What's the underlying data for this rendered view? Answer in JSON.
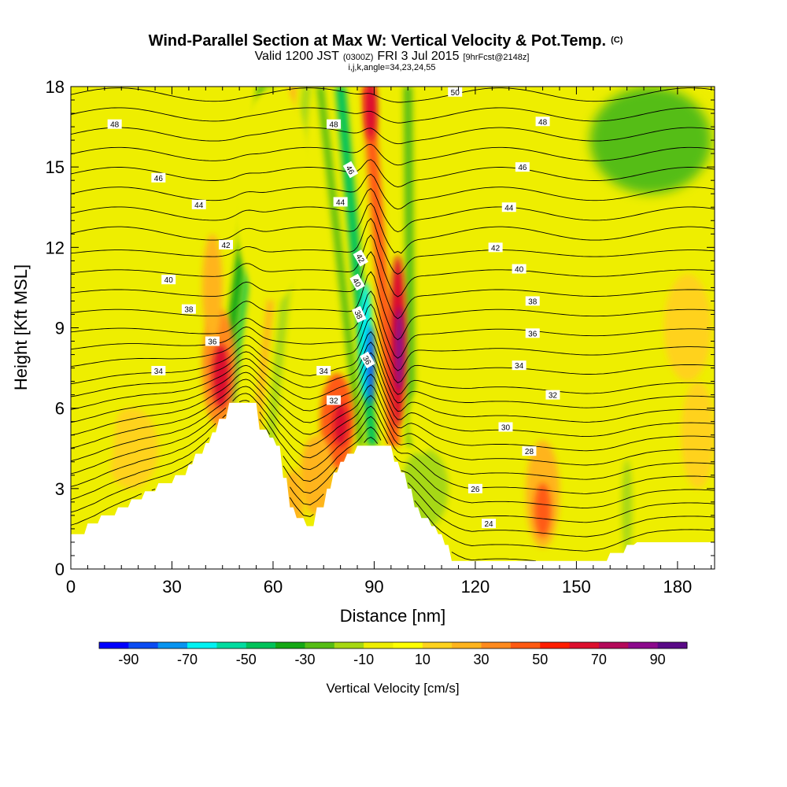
{
  "chart_data": {
    "type": "heatmap",
    "title": "Wind-Parallel Section at Max W: Vertical Velocity & Pot.Temp.",
    "title_note": "(C)",
    "subtitle": {
      "prefix": "Valid 1200 JST",
      "utc": "(0300Z)",
      "date": "FRI 3 Jul 2015",
      "forecast": "[9hrFcst@2148z]"
    },
    "indices_line": "i,j,k,angle=34,23,24,55",
    "xlabel": "Distance [nm]",
    "ylabel": "Height [Kft MSL]",
    "xlim": [
      0,
      191
    ],
    "ylim": [
      0,
      18
    ],
    "xticks": [
      {
        "value": 0,
        "label": "0"
      },
      {
        "value": 30,
        "label": "30"
      },
      {
        "value": 60,
        "label": "60"
      },
      {
        "value": 90,
        "label": "90"
      },
      {
        "value": 120,
        "label": "120"
      },
      {
        "value": 150,
        "label": "150"
      },
      {
        "value": 180,
        "label": "180"
      }
    ],
    "yticks": [
      {
        "value": 0,
        "label": "0"
      },
      {
        "value": 3,
        "label": "3"
      },
      {
        "value": 6,
        "label": "6"
      },
      {
        "value": 9,
        "label": "9"
      },
      {
        "value": 12,
        "label": "12"
      },
      {
        "value": 15,
        "label": "15"
      },
      {
        "value": 18,
        "label": "18"
      }
    ],
    "colorbar": {
      "label": "Vertical Velocity [cm/s]",
      "min": -100,
      "max": 100,
      "colors": [
        "#0000ff",
        "#0b4cf2",
        "#0894f0",
        "#00f2f2",
        "#00dca0",
        "#00c25a",
        "#14a814",
        "#55bd14",
        "#a6d812",
        "#eeee00",
        "#ffff00",
        "#ffd21e",
        "#ffb41e",
        "#ff8a1e",
        "#ff5a12",
        "#ff1e00",
        "#dc0f2d",
        "#b40a5a",
        "#8c0a8c",
        "#5a0a87"
      ],
      "tick_labels": [
        {
          "value": -90,
          "label": "-90"
        },
        {
          "value": -70,
          "label": "-70"
        },
        {
          "value": -50,
          "label": "-50"
        },
        {
          "value": -30,
          "label": "-30"
        },
        {
          "value": -10,
          "label": "-10"
        },
        {
          "value": 10,
          "label": "10"
        },
        {
          "value": 30,
          "label": "30"
        },
        {
          "value": 50,
          "label": "50"
        },
        {
          "value": 70,
          "label": "70"
        },
        {
          "value": 90,
          "label": "90"
        }
      ]
    },
    "terrain": [
      [
        0,
        1.3
      ],
      [
        4,
        1.3
      ],
      [
        5,
        1.7
      ],
      [
        8,
        1.7
      ],
      [
        9,
        2.0
      ],
      [
        13,
        2.0
      ],
      [
        14,
        2.3
      ],
      [
        17,
        2.3
      ],
      [
        18,
        2.6
      ],
      [
        21,
        2.6
      ],
      [
        22,
        2.9
      ],
      [
        25,
        2.9
      ],
      [
        26,
        3.2
      ],
      [
        30,
        3.2
      ],
      [
        31,
        3.5
      ],
      [
        34,
        3.5
      ],
      [
        35,
        3.9
      ],
      [
        36,
        3.9
      ],
      [
        37,
        4.3
      ],
      [
        39,
        4.3
      ],
      [
        40,
        4.7
      ],
      [
        41,
        4.7
      ],
      [
        42,
        5.1
      ],
      [
        43,
        5.1
      ],
      [
        44,
        5.6
      ],
      [
        46,
        5.6
      ],
      [
        47,
        6.2
      ],
      [
        55,
        6.2
      ],
      [
        56,
        5.2
      ],
      [
        58,
        5.2
      ],
      [
        59,
        4.9
      ],
      [
        60,
        4.9
      ],
      [
        61,
        4.6
      ],
      [
        62,
        4.6
      ],
      [
        63,
        3.4
      ],
      [
        64,
        3.4
      ],
      [
        65,
        2.3
      ],
      [
        66,
        2.3
      ],
      [
        67,
        1.9
      ],
      [
        69,
        1.9
      ],
      [
        70,
        1.6
      ],
      [
        72,
        1.6
      ],
      [
        73,
        2.3
      ],
      [
        75,
        2.3
      ],
      [
        76,
        3.0
      ],
      [
        77,
        3.0
      ],
      [
        78,
        3.6
      ],
      [
        79,
        3.6
      ],
      [
        80,
        4.0
      ],
      [
        81,
        4.0
      ],
      [
        82,
        4.3
      ],
      [
        84,
        4.3
      ],
      [
        85,
        4.6
      ],
      [
        95,
        4.6
      ],
      [
        96,
        4.0
      ],
      [
        97,
        4.0
      ],
      [
        98,
        3.6
      ],
      [
        99,
        3.6
      ],
      [
        100,
        3.0
      ],
      [
        101,
        3.0
      ],
      [
        102,
        2.3
      ],
      [
        103,
        2.3
      ],
      [
        104,
        1.9
      ],
      [
        106,
        1.9
      ],
      [
        107,
        1.6
      ],
      [
        108,
        1.6
      ],
      [
        109,
        1.3
      ],
      [
        110,
        1.3
      ],
      [
        111,
        0.9
      ],
      [
        112,
        0.9
      ],
      [
        113,
        0.3
      ],
      [
        159,
        0.3
      ],
      [
        160,
        0.6
      ],
      [
        164,
        0.6
      ],
      [
        165,
        0.9
      ],
      [
        167,
        0.9
      ],
      [
        168,
        1.0
      ],
      [
        191,
        1.0
      ]
    ],
    "velocity_features": [
      {
        "type": "band",
        "x0": 45,
        "y0": 6.2,
        "x1": 57,
        "y1": 18,
        "width": 3.0,
        "value": -32
      },
      {
        "type": "band",
        "x0": 47.5,
        "y0": 6.2,
        "x1": 59.5,
        "y1": 18,
        "width": 1.5,
        "value": -48
      },
      {
        "type": "band",
        "x0": 55,
        "y0": 5.0,
        "x1": 66,
        "y1": 18,
        "width": 2.0,
        "value": 20
      },
      {
        "type": "band",
        "x0": 59,
        "y0": 4.5,
        "x1": 70,
        "y1": 18,
        "width": 2.5,
        "value": -18
      },
      {
        "type": "band",
        "x0": 86,
        "y0": 4.6,
        "x1": 74,
        "y1": 18,
        "width": 2.0,
        "value": -22
      },
      {
        "type": "band",
        "x0": 89.5,
        "y0": 4.6,
        "x1": 80,
        "y1": 18,
        "width": 3.0,
        "value": -50
      },
      {
        "type": "band",
        "x0": 96,
        "y0": 4.6,
        "x1": 88,
        "y1": 18,
        "width": 3.5,
        "value": 45
      },
      {
        "type": "band",
        "x0": 101,
        "y0": 4.6,
        "x1": 100,
        "y1": 18,
        "width": 2.5,
        "value": -28
      },
      {
        "type": "blob",
        "x": 87.5,
        "y": 8.5,
        "rx": 1.8,
        "ry": 2.2,
        "value": -70
      },
      {
        "type": "blob",
        "x": 89,
        "y": 7.6,
        "rx": 1.0,
        "ry": 1.5,
        "value": -85
      },
      {
        "type": "blob",
        "x": 97,
        "y": 8.5,
        "rx": 2.4,
        "ry": 3.2,
        "value": 60
      },
      {
        "type": "blob",
        "x": 97.5,
        "y": 8.2,
        "rx": 1.2,
        "ry": 1.6,
        "value": 88
      },
      {
        "type": "blob",
        "x": 89,
        "y": 17.2,
        "rx": 1.8,
        "ry": 1.2,
        "value": 62
      },
      {
        "type": "blob",
        "x": 44,
        "y": 7.5,
        "rx": 5.0,
        "ry": 2.2,
        "value": 38
      },
      {
        "type": "blob",
        "x": 44.5,
        "y": 7.2,
        "rx": 2.5,
        "ry": 1.2,
        "value": 62
      },
      {
        "type": "blob",
        "x": 42,
        "y": 10.5,
        "rx": 3.0,
        "ry": 2.0,
        "value": 22
      },
      {
        "type": "blob",
        "x": 79,
        "y": 5.5,
        "rx": 5.0,
        "ry": 1.8,
        "value": 40
      },
      {
        "type": "blob",
        "x": 80,
        "y": 5.4,
        "rx": 2.2,
        "ry": 0.8,
        "value": 62
      },
      {
        "type": "blob",
        "x": 73,
        "y": 3.5,
        "rx": 5.0,
        "ry": 1.5,
        "value": 25
      },
      {
        "type": "blob",
        "x": 66,
        "y": 2.5,
        "rx": 3.0,
        "ry": 1.2,
        "value": 20
      },
      {
        "type": "blob",
        "x": 140,
        "y": 2.8,
        "rx": 5.0,
        "ry": 2.0,
        "value": 28
      },
      {
        "type": "blob",
        "x": 140,
        "y": 2.2,
        "rx": 2.5,
        "ry": 1.0,
        "value": 40
      },
      {
        "type": "blob",
        "x": 18,
        "y": 4.5,
        "rx": 8.0,
        "ry": 1.5,
        "value": 18
      },
      {
        "type": "blob",
        "x": 186,
        "y": 5.0,
        "rx": 5.0,
        "ry": 2.0,
        "value": 18
      },
      {
        "type": "blob",
        "x": 183,
        "y": 9.0,
        "rx": 7.0,
        "ry": 2.0,
        "value": 13
      },
      {
        "type": "blob",
        "x": 124,
        "y": 5.5,
        "rx": 8.0,
        "ry": 2.0,
        "value": -8
      },
      {
        "type": "blob",
        "x": 140,
        "y": 8.0,
        "rx": 5.0,
        "ry": 2.0,
        "value": -7
      },
      {
        "type": "blob",
        "x": 7,
        "y": 7.5,
        "rx": 7.0,
        "ry": 5.0,
        "value": -6
      },
      {
        "type": "blob",
        "x": 10,
        "y": 14.5,
        "rx": 17.0,
        "ry": 3.5,
        "value": -8
      },
      {
        "type": "blob",
        "x": 12,
        "y": 10.0,
        "rx": 15.0,
        "ry": 2.5,
        "value": -5
      },
      {
        "type": "blob",
        "x": 60,
        "y": 14.0,
        "rx": 12.0,
        "ry": 4.0,
        "value": -6
      },
      {
        "type": "blob",
        "x": 160,
        "y": 15.5,
        "rx": 32.0,
        "ry": 2.5,
        "value": -10
      },
      {
        "type": "blob",
        "x": 172,
        "y": 16.0,
        "rx": 18.0,
        "ry": 2.0,
        "value": -22
      },
      {
        "type": "blob",
        "x": 120,
        "y": 16.5,
        "rx": 14.0,
        "ry": 1.5,
        "value": -8
      },
      {
        "type": "blob",
        "x": 105,
        "y": 3.0,
        "rx": 7.0,
        "ry": 1.5,
        "value": -12
      },
      {
        "type": "blob",
        "x": 165,
        "y": 2.3,
        "rx": 1.5,
        "ry": 1.8,
        "value": -18
      },
      {
        "type": "blob",
        "x": 104,
        "y": 5.5,
        "rx": 4.0,
        "ry": 1.2,
        "value": -10
      }
    ],
    "theta_levels": [
      22,
      23,
      24,
      25,
      26,
      27,
      28,
      29,
      30,
      31,
      32,
      33,
      34,
      35,
      36,
      37,
      38,
      39,
      40,
      41,
      42,
      43,
      44,
      45,
      46,
      47,
      48,
      49,
      50
    ],
    "theta_labels": [
      {
        "text": "48",
        "x": 13,
        "y": 16.6,
        "angle": 0
      },
      {
        "text": "46",
        "x": 26,
        "y": 14.6,
        "angle": 0
      },
      {
        "text": "44",
        "x": 38,
        "y": 13.6,
        "angle": 0
      },
      {
        "text": "42",
        "x": 46,
        "y": 12.1,
        "angle": 0
      },
      {
        "text": "40",
        "x": 29,
        "y": 10.8,
        "angle": 0
      },
      {
        "text": "38",
        "x": 35,
        "y": 9.7,
        "angle": 0
      },
      {
        "text": "36",
        "x": 42,
        "y": 8.5,
        "angle": 0
      },
      {
        "text": "34",
        "x": 26,
        "y": 7.4,
        "angle": 0
      },
      {
        "text": "48",
        "x": 78,
        "y": 16.6,
        "angle": 0
      },
      {
        "text": "46",
        "x": 83,
        "y": 14.9,
        "angle": 60
      },
      {
        "text": "44",
        "x": 80,
        "y": 13.7,
        "angle": 0
      },
      {
        "text": "42",
        "x": 86,
        "y": 11.6,
        "angle": 60
      },
      {
        "text": "40",
        "x": 85,
        "y": 10.7,
        "angle": 60
      },
      {
        "text": "38",
        "x": 85.5,
        "y": 9.5,
        "angle": 65
      },
      {
        "text": "36",
        "x": 88,
        "y": 7.8,
        "angle": 60
      },
      {
        "text": "34",
        "x": 75,
        "y": 7.4,
        "angle": 0
      },
      {
        "text": "32",
        "x": 78,
        "y": 6.3,
        "angle": 0
      },
      {
        "text": "50",
        "x": 114,
        "y": 17.8,
        "angle": 0
      },
      {
        "text": "48",
        "x": 140,
        "y": 16.7,
        "angle": 0
      },
      {
        "text": "46",
        "x": 134,
        "y": 15.0,
        "angle": 0
      },
      {
        "text": "44",
        "x": 130,
        "y": 13.5,
        "angle": 0
      },
      {
        "text": "42",
        "x": 126,
        "y": 12.0,
        "angle": 0
      },
      {
        "text": "40",
        "x": 133,
        "y": 11.2,
        "angle": 0
      },
      {
        "text": "38",
        "x": 137,
        "y": 10.0,
        "angle": 0
      },
      {
        "text": "36",
        "x": 137,
        "y": 8.8,
        "angle": 0
      },
      {
        "text": "34",
        "x": 133,
        "y": 7.6,
        "angle": 0
      },
      {
        "text": "32",
        "x": 143,
        "y": 6.5,
        "angle": 0
      },
      {
        "text": "30",
        "x": 129,
        "y": 5.3,
        "angle": 0
      },
      {
        "text": "28",
        "x": 136,
        "y": 4.4,
        "angle": 0
      },
      {
        "text": "26",
        "x": 120,
        "y": 3.0,
        "angle": 0
      },
      {
        "text": "24",
        "x": 124,
        "y": 1.7,
        "angle": 0
      }
    ]
  }
}
